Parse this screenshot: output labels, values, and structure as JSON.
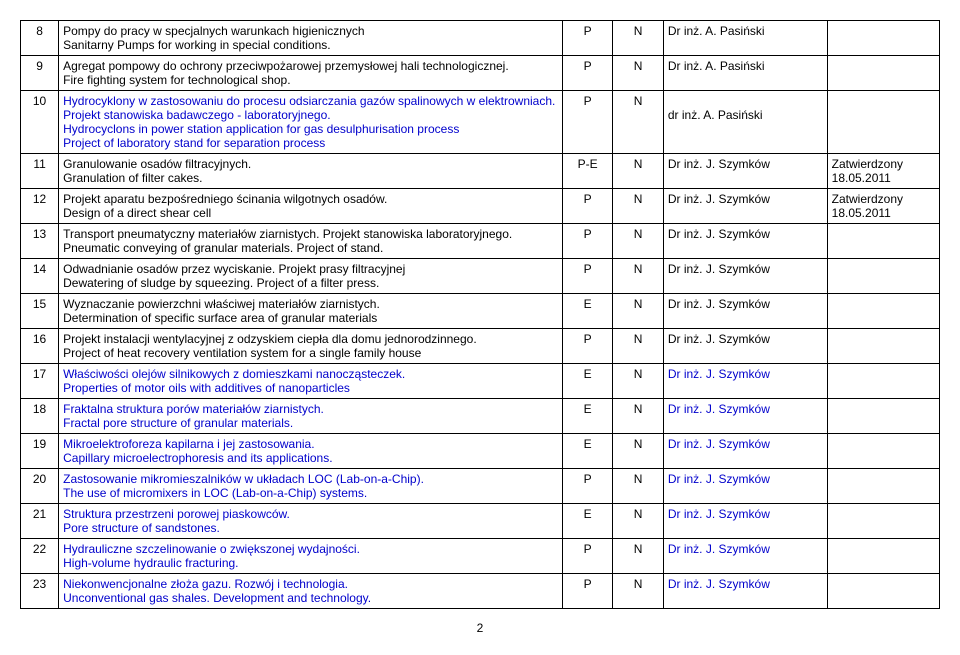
{
  "page_number": "2",
  "rows": [
    {
      "num": "8",
      "pl": "Pompy do pracy w specjalnych warunkach higienicznych",
      "en": "Sanitarny Pumps for working in special conditions.",
      "pe": "P",
      "n": "N",
      "person": "Dr inż. A. Pasiński",
      "status": ""
    },
    {
      "num": "9",
      "pl": "Agregat pompowy do ochrony przeciwpożarowej przemysłowej hali technologicznej.",
      "en": "Fire fighting system for technological shop.",
      "pe": "P",
      "n": "N",
      "person": "Dr inż. A. Pasiński",
      "status": ""
    },
    {
      "num": "10",
      "pl_blue": "Hydrocyklony w zastosowaniu do procesu odsiarczania gazów spalinowych w elektrowniach. Projekt stanowiska badawczego - laboratoryjnego.",
      "en_blue1": "Hydrocyclons in power station application for gas desulphurisation process",
      "en_blue2": "Project of laboratory stand for separation process",
      "pe": "P",
      "n": "N",
      "person": "dr inż. A. Pasiński",
      "status": ""
    },
    {
      "num": "11",
      "pl": "Granulowanie osadów filtracyjnych.",
      "en": "Granulation of filter cakes.",
      "pe": "P-E",
      "n": "N",
      "person": "Dr inż. J. Szymków",
      "status_l1": "Zatwierdzony",
      "status_l2": "18.05.2011"
    },
    {
      "num": "12",
      "pl": "Projekt aparatu bezpośredniego ścinania wilgotnych osadów.",
      "en": "Design of a direct shear cell",
      "pe": "P",
      "n": "N",
      "person": "Dr inż. J. Szymków",
      "status_l1": "Zatwierdzony",
      "status_l2": "18.05.2011"
    },
    {
      "num": "13",
      "pl": "Transport pneumatyczny materiałów ziarnistych. Projekt stanowiska laboratoryjnego.",
      "en": "Pneumatic conveying of granular materials. Project of stand.",
      "pe": "P",
      "n": "N",
      "person": "Dr inż. J. Szymków",
      "status": ""
    },
    {
      "num": "14",
      "pl": "Odwadnianie osadów przez wyciskanie. Projekt prasy filtracyjnej",
      "en": "Dewatering of sludge by squeezing. Project of a filter press.",
      "pe": "P",
      "n": "N",
      "person": "Dr inż. J. Szymków",
      "status": ""
    },
    {
      "num": "15",
      "pl": "Wyznaczanie powierzchni właściwej materiałów ziarnistych.",
      "en": "Determination of specific surface area of granular materials",
      "pe": "E",
      "n": "N",
      "person": "Dr inż. J. Szymków",
      "status": ""
    },
    {
      "num": "16",
      "pl": "Projekt instalacji wentylacyjnej z odzyskiem ciepła dla domu jednorodzinnego.",
      "en": "Project of  heat recovery ventilation system for a single family house",
      "pe": "P",
      "n": "N",
      "person": "Dr inż. J. Szymków",
      "status": ""
    },
    {
      "num": "17",
      "pl_blue": "Właściwości olejów silnikowych z domieszkami nanocząsteczek.",
      "en_blue": "Properties of motor oils with additives of nanoparticles",
      "pe": "E",
      "n": "N",
      "person_blue": "Dr inż. J. Szymków",
      "status": ""
    },
    {
      "num": "18",
      "pl_blue": "Fraktalna struktura porów materiałów ziarnistych.",
      "en_blue": "Fractal pore structure of granular materials.",
      "pe": "E",
      "n": "N",
      "person_blue": "Dr inż. J. Szymków",
      "status": ""
    },
    {
      "num": "19",
      "pl_blue": "Mikroelektroforeza kapilarna i jej zastosowania.",
      "en_blue": "Capillary microelectrophoresis and its applications.",
      "pe": "E",
      "n": "N",
      "person_blue": "Dr inż. J. Szymków",
      "status": ""
    },
    {
      "num": "20",
      "pl_blue": "Zastosowanie mikromieszalników w układach LOC (Lab-on-a-Chip).",
      "en_blue": "The use of micromixers in LOC (Lab-on-a-Chip) systems.",
      "pe": "P",
      "n": "N",
      "person_blue": "Dr inż. J. Szymków",
      "status": ""
    },
    {
      "num": "21",
      "pl_blue": "Struktura przestrzeni porowej piaskowców.",
      "en_blue": "Pore structure of sandstones.",
      "pe": "E",
      "n": "N",
      "person_blue": "Dr inż. J. Szymków",
      "status": ""
    },
    {
      "num": "22",
      "pl_blue": "Hydrauliczne szczelinowanie o zwiększonej wydajności.",
      "en_blue": "High-volume hydraulic fracturing.",
      "pe": "P",
      "n": "N",
      "person_blue": "Dr inż. J. Szymków",
      "status": ""
    },
    {
      "num": "23",
      "pl_blue": "Niekonwencjonalne złoża gazu. Rozwój i technologia.",
      "en_blue": "Unconventional gas shales. Development and technology.",
      "pe": "P",
      "n": "N",
      "person_blue": "Dr inż. J. Szymków",
      "status": ""
    }
  ]
}
